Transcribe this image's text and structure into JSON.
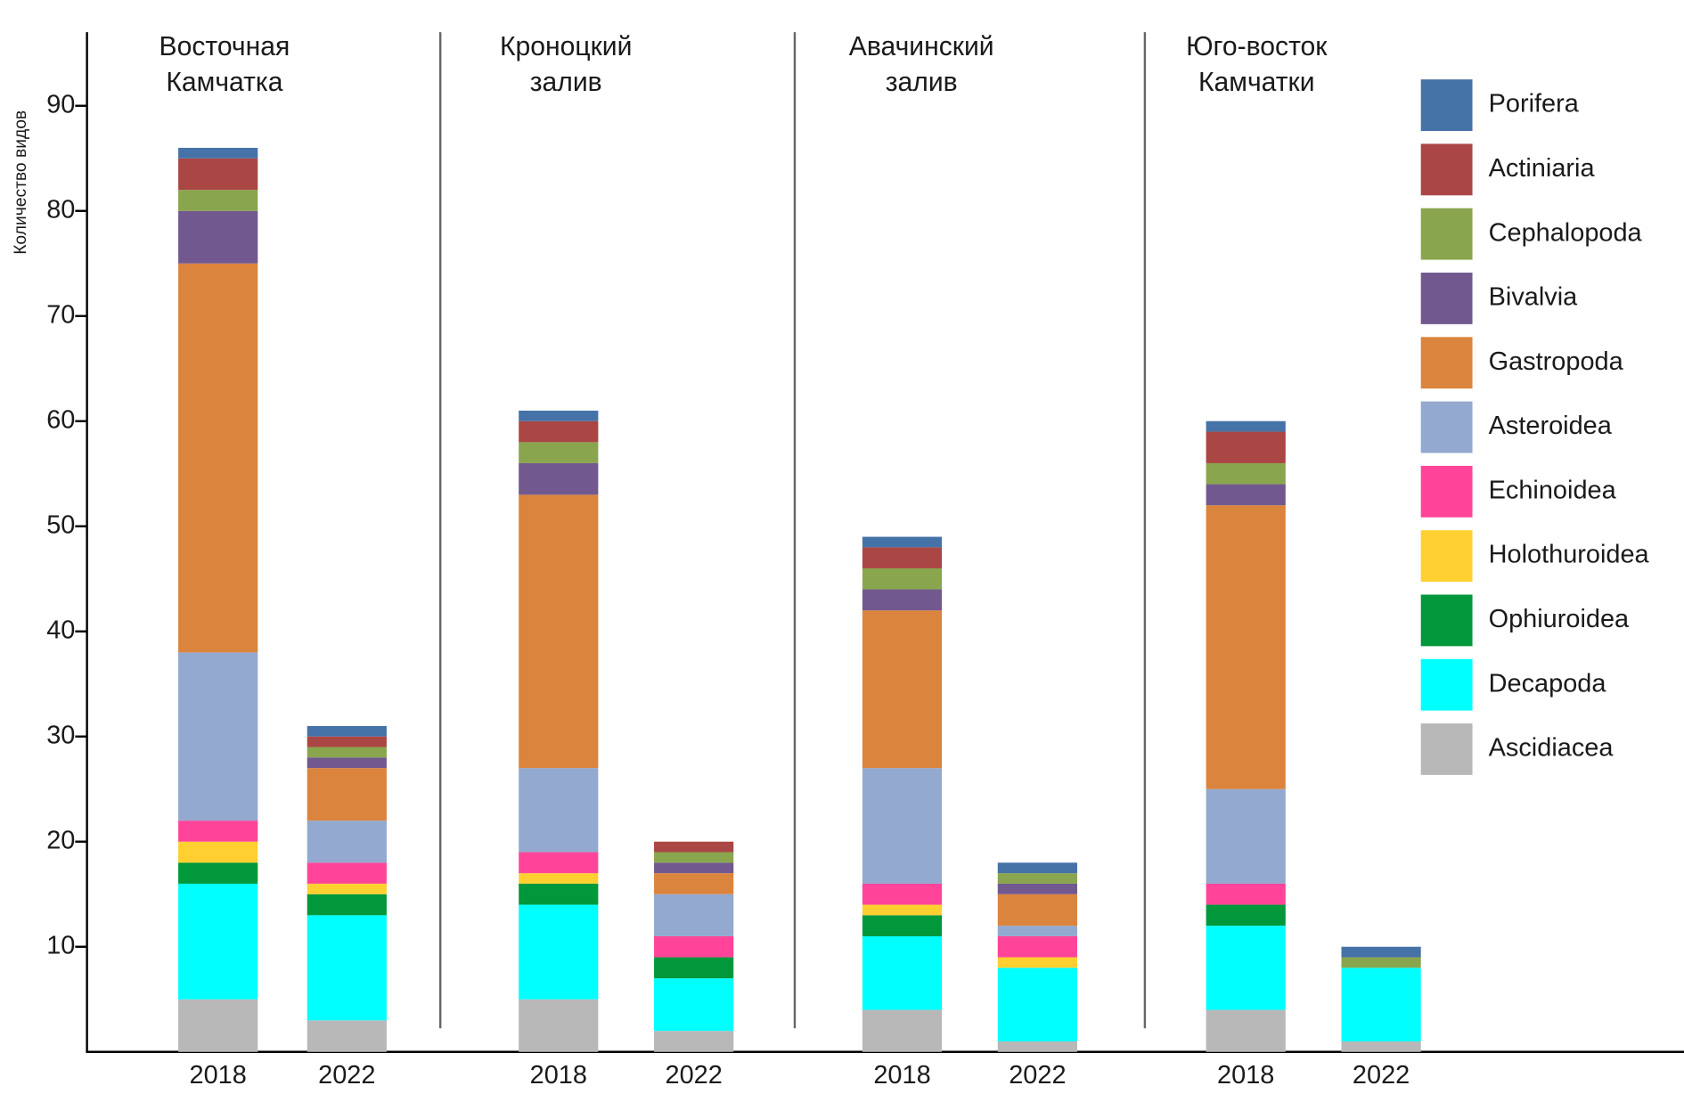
{
  "chart_data": {
    "type": "stacked-bar",
    "y_label": "Количество видов",
    "groups": [
      [
        "Восточная",
        "Камчатка"
      ],
      [
        "Кроноцкий",
        "залив"
      ],
      [
        "Авачинский",
        "залив"
      ],
      [
        "Юго-восток",
        "Камчатки"
      ]
    ],
    "categories": [
      "2018",
      "2022",
      "2018",
      "2022",
      "2018",
      "2022",
      "2018",
      "2022"
    ],
    "ylim": [
      0,
      97
    ],
    "yticks": [
      10,
      20,
      30,
      40,
      50,
      60,
      70,
      80,
      90
    ],
    "series": [
      {
        "name": "Ascidiacea",
        "color": "#b8b8b8",
        "values": [
          5,
          3,
          5,
          2,
          4,
          1,
          4,
          1
        ]
      },
      {
        "name": "Decapoda",
        "color": "#00ffff",
        "values": [
          11,
          10,
          9,
          5,
          7,
          7,
          8,
          7
        ]
      },
      {
        "name": "Ophiuroidea",
        "color": "#00983a",
        "values": [
          2,
          2,
          2,
          2,
          2,
          0,
          2,
          0
        ]
      },
      {
        "name": "Holothuroidea",
        "color": "#ffd030",
        "values": [
          2,
          1,
          1,
          0,
          1,
          1,
          0,
          0
        ]
      },
      {
        "name": "Echinoidea",
        "color": "#ff4499",
        "values": [
          2,
          2,
          2,
          2,
          2,
          2,
          2,
          0
        ]
      },
      {
        "name": "Asteroidea",
        "color": "#93a9cf",
        "values": [
          16,
          4,
          8,
          4,
          11,
          1,
          9,
          0
        ]
      },
      {
        "name": "Gastropoda",
        "color": "#db843d",
        "values": [
          37,
          5,
          26,
          2,
          15,
          3,
          27,
          0
        ]
      },
      {
        "name": "Bivalvia",
        "color": "#71588f",
        "values": [
          5,
          1,
          3,
          1,
          2,
          1,
          2,
          0
        ]
      },
      {
        "name": "Cephalopoda",
        "color": "#89a54e",
        "values": [
          2,
          1,
          2,
          1,
          2,
          1,
          2,
          1
        ]
      },
      {
        "name": "Actiniaria",
        "color": "#aa4643",
        "values": [
          3,
          1,
          2,
          1,
          2,
          0,
          3,
          0
        ]
      },
      {
        "name": "Porifera",
        "color": "#4572a7",
        "values": [
          1,
          1,
          1,
          0,
          1,
          1,
          1,
          1
        ]
      }
    ]
  }
}
